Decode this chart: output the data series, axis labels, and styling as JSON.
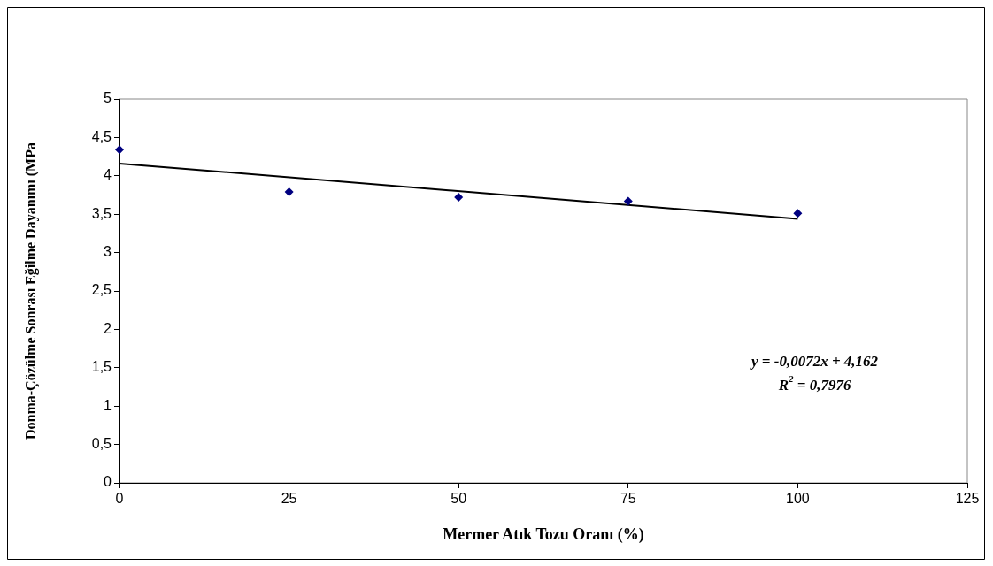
{
  "chart_data": {
    "type": "scatter",
    "xlabel": "Mermer Atık Tozu Oranı (%)",
    "ylabel": "Donma-Çözülme Sonrası Eğilme Dayanımı (MPa",
    "x": [
      0,
      25,
      50,
      75,
      100
    ],
    "series": [
      {
        "color": "#000080",
        "marker": "diamond",
        "values": [
          4.34,
          3.79,
          3.72,
          3.67,
          3.51
        ]
      },
      {
        "type": "line",
        "color": "#000000",
        "marker": "none",
        "x": [
          0,
          100
        ],
        "values": [
          4.16,
          3.44
        ]
      }
    ],
    "xlim": [
      0,
      125
    ],
    "xticks": [
      0,
      25,
      50,
      75,
      100,
      125
    ],
    "ylim": [
      0,
      5
    ],
    "yticks": [
      0,
      {
        "value": 0.5,
        "label": "0,5"
      },
      1,
      {
        "value": 1.5,
        "label": "1,5"
      },
      2,
      {
        "value": 2.5,
        "label": "2,5"
      },
      3,
      {
        "value": 3.5,
        "label": "3,5"
      },
      4,
      {
        "value": 4.5,
        "label": "4,5"
      },
      5
    ],
    "annotations": [
      "y = -0,0072x + 4,162",
      "R$^{2}$ = 0,7976"
    ],
    "grid": false,
    "legend": false
  }
}
